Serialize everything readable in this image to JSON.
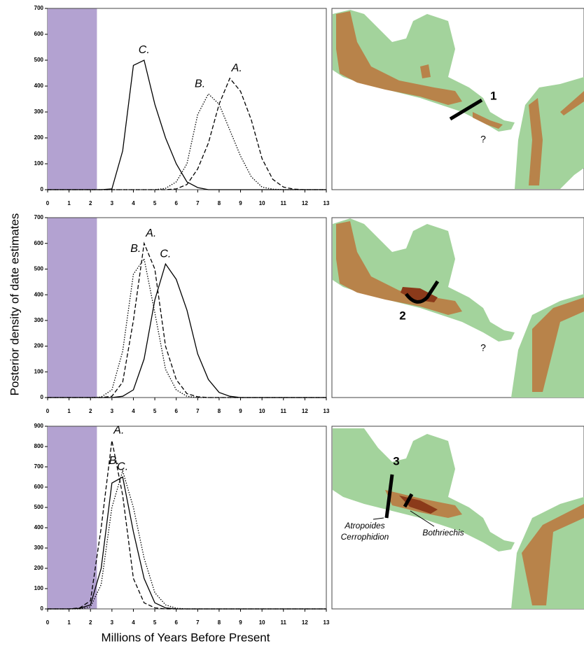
{
  "ylabel": "Posterior density of date estimates",
  "xlabel": "Millions of Years Before Present",
  "chart_data": [
    {
      "type": "line",
      "shaded_region": [
        0,
        2.3
      ],
      "shade_color": "#b3a2d1",
      "x": [
        0,
        0.5,
        1,
        1.5,
        2,
        2.5,
        3,
        3.5,
        4,
        4.5,
        5,
        5.5,
        6,
        6.5,
        7,
        7.5,
        8,
        8.5,
        9,
        9.5,
        10,
        10.5,
        11,
        11.5,
        12,
        12.5,
        13
      ],
      "xlim": [
        0,
        13
      ],
      "xticks": [
        0,
        1,
        2,
        3,
        4,
        5,
        6,
        7,
        8,
        9,
        10,
        11,
        12,
        13
      ],
      "ylim": [
        0,
        700
      ],
      "yticks": [
        0,
        100,
        200,
        300,
        400,
        500,
        600,
        700
      ],
      "series": [
        {
          "name": "C.",
          "color": "#000000",
          "style": "solid",
          "values": [
            0,
            0,
            0,
            0,
            0,
            0,
            3,
            150,
            480,
            500,
            330,
            200,
            100,
            30,
            8,
            0,
            0,
            0,
            0,
            0,
            0,
            0,
            0,
            0,
            0,
            0,
            0
          ]
        },
        {
          "name": "B.",
          "color": "#000000",
          "style": "dotted",
          "values": [
            0,
            0,
            0,
            0,
            0,
            0,
            0,
            0,
            0,
            0,
            0,
            5,
            30,
            100,
            290,
            370,
            330,
            230,
            130,
            50,
            10,
            2,
            0,
            0,
            0,
            0,
            0
          ]
        },
        {
          "name": "A.",
          "color": "#000000",
          "style": "dashed",
          "values": [
            0,
            0,
            0,
            0,
            0,
            0,
            0,
            0,
            0,
            0,
            0,
            0,
            3,
            20,
            80,
            180,
            330,
            430,
            380,
            270,
            120,
            40,
            10,
            2,
            0,
            0,
            0
          ]
        }
      ]
    },
    {
      "type": "line",
      "shaded_region": [
        0,
        2.3
      ],
      "shade_color": "#b3a2d1",
      "x": [
        0,
        0.5,
        1,
        1.5,
        2,
        2.5,
        3,
        3.5,
        4,
        4.5,
        5,
        5.5,
        6,
        6.5,
        7,
        7.5,
        8,
        8.5,
        9,
        9.5,
        10,
        10.5,
        11,
        11.5,
        12,
        12.5,
        13
      ],
      "xlim": [
        0,
        13
      ],
      "xticks": [
        0,
        1,
        2,
        3,
        4,
        5,
        6,
        7,
        8,
        9,
        10,
        11,
        12,
        13
      ],
      "ylim": [
        0,
        700
      ],
      "yticks": [
        0,
        100,
        200,
        300,
        400,
        500,
        600,
        700
      ],
      "series": [
        {
          "name": "A.",
          "color": "#000000",
          "style": "dashed",
          "values": [
            0,
            0,
            0,
            0,
            0,
            0,
            5,
            60,
            300,
            600,
            500,
            200,
            70,
            15,
            3,
            0,
            0,
            0,
            0,
            0,
            0,
            0,
            0,
            0,
            0,
            0,
            0
          ]
        },
        {
          "name": "B.",
          "color": "#000000",
          "style": "dotted",
          "values": [
            0,
            0,
            0,
            0,
            0,
            2,
            30,
            180,
            480,
            540,
            330,
            110,
            30,
            5,
            0,
            0,
            0,
            0,
            0,
            0,
            0,
            0,
            0,
            0,
            0,
            0,
            0
          ]
        },
        {
          "name": "C.",
          "color": "#000000",
          "style": "solid",
          "values": [
            0,
            0,
            0,
            0,
            0,
            0,
            0,
            5,
            30,
            150,
            380,
            520,
            460,
            340,
            170,
            70,
            20,
            5,
            0,
            0,
            0,
            0,
            0,
            0,
            0,
            0,
            0
          ]
        }
      ]
    },
    {
      "type": "line",
      "shaded_region": [
        0,
        2.3
      ],
      "shade_color": "#b3a2d1",
      "x": [
        0,
        0.5,
        1,
        1.5,
        2,
        2.5,
        3,
        3.5,
        4,
        4.5,
        5,
        5.5,
        6,
        6.5,
        7,
        7.5,
        8,
        8.5,
        9,
        9.5,
        10,
        10.5,
        11,
        11.5,
        12,
        12.5,
        13
      ],
      "xlim": [
        0,
        13
      ],
      "xticks": [
        0,
        1,
        2,
        3,
        4,
        5,
        6,
        7,
        8,
        9,
        10,
        11,
        12,
        13
      ],
      "ylim": [
        0,
        900
      ],
      "yticks": [
        0,
        100,
        200,
        300,
        400,
        500,
        600,
        700,
        800,
        900
      ],
      "series": [
        {
          "name": "A.",
          "color": "#000000",
          "style": "dashed",
          "values": [
            0,
            0,
            0,
            5,
            40,
            400,
            830,
            560,
            150,
            30,
            5,
            0,
            0,
            0,
            0,
            0,
            0,
            0,
            0,
            0,
            0,
            0,
            0,
            0,
            0,
            0,
            0
          ]
        },
        {
          "name": "C.",
          "color": "#000000",
          "style": "solid",
          "values": [
            0,
            0,
            0,
            3,
            20,
            200,
            620,
            650,
            380,
            150,
            30,
            5,
            0,
            0,
            0,
            0,
            0,
            0,
            0,
            0,
            0,
            0,
            0,
            0,
            0,
            0,
            0
          ]
        },
        {
          "name": "B.",
          "color": "#000000",
          "style": "dotted",
          "values": [
            0,
            0,
            0,
            0,
            10,
            120,
            500,
            680,
            500,
            250,
            80,
            20,
            3,
            0,
            0,
            0,
            0,
            0,
            0,
            0,
            0,
            0,
            0,
            0,
            0,
            0,
            0
          ]
        }
      ]
    }
  ],
  "maps": [
    {
      "labels": [
        "1",
        "?"
      ]
    },
    {
      "labels": [
        "2",
        "?"
      ]
    },
    {
      "labels": [
        "3",
        "Atropoides",
        "Cerrophidion",
        "Bothriechis"
      ]
    }
  ]
}
